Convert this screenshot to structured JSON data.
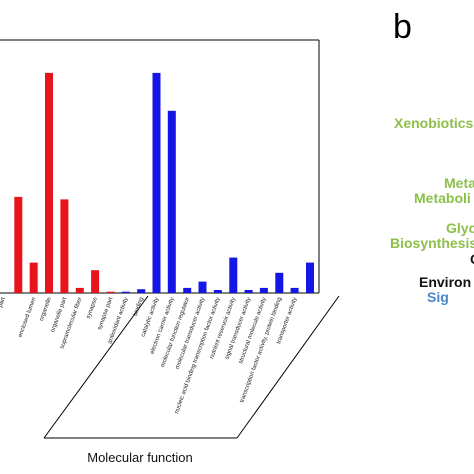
{
  "chart_data": {
    "type": "bar",
    "title": "",
    "xlabel": "",
    "ylabel": "",
    "ylim": [
      0,
      100
    ],
    "categories": [
      {
        "label": "part",
        "group": "cellular",
        "value": 0
      },
      {
        "label": "",
        "group": "cellular",
        "value": 38
      },
      {
        "label": "enclosed lumen",
        "group": "cellular",
        "value": 12
      },
      {
        "label": "organelle",
        "group": "cellular",
        "value": 87
      },
      {
        "label": "organelle part",
        "group": "cellular",
        "value": 37
      },
      {
        "label": "supramolecular fiber",
        "group": "cellular",
        "value": 2
      },
      {
        "label": "synapse",
        "group": "cellular",
        "value": 9
      },
      {
        "label": "synapse part",
        "group": "cellular",
        "value": 0.5
      },
      {
        "label": "antioxidant activity",
        "group": "molecular",
        "value": 0.5
      },
      {
        "label": "binding",
        "group": "molecular",
        "value": 1.5
      },
      {
        "label": "catalytic activity",
        "group": "molecular",
        "value": 87
      },
      {
        "label": "electron carrier activity",
        "group": "molecular",
        "value": 72
      },
      {
        "label": "molecular function regulator",
        "group": "molecular",
        "value": 2
      },
      {
        "label": "molecular transducer activity",
        "group": "molecular",
        "value": 4.5
      },
      {
        "label": "nucleic acid binding transcription factor activity",
        "group": "molecular",
        "value": 1.2
      },
      {
        "label": "nutrient reservoir activity",
        "group": "molecular",
        "value": 14
      },
      {
        "label": "signal transducer activity",
        "group": "molecular",
        "value": 1.2
      },
      {
        "label": "structural molecule activity",
        "group": "molecular",
        "value": 2
      },
      {
        "label": "transcription factor activity, protein binding",
        "group": "molecular",
        "value": 8
      },
      {
        "label": "transporter activity",
        "group": "molecular",
        "value": 2
      },
      {
        "label": "",
        "group": "molecular",
        "value": 12
      }
    ],
    "groups": {
      "cellular": {
        "color": "#e8141c"
      },
      "molecular": {
        "color": "#1515e6"
      },
      "molecular_label": "Molecular function"
    },
    "grid": false,
    "legend": "none"
  },
  "panel_b": {
    "letter": "b",
    "lines": [
      {
        "text": "Xenobiotics",
        "color": "#8dc04a"
      },
      {
        "text": "Meta",
        "color": "#8dc04a"
      },
      {
        "text": "Metaboli",
        "color": "#8dc04a"
      },
      {
        "text": "Glyc",
        "color": "#8dc04a"
      },
      {
        "text": "Biosynthesis",
        "color": "#8dc04a"
      },
      {
        "text": "C",
        "color": "#111111"
      },
      {
        "text": "Environ",
        "color": "#111111"
      },
      {
        "text": "Sig",
        "color": "#4a86c8"
      }
    ]
  }
}
